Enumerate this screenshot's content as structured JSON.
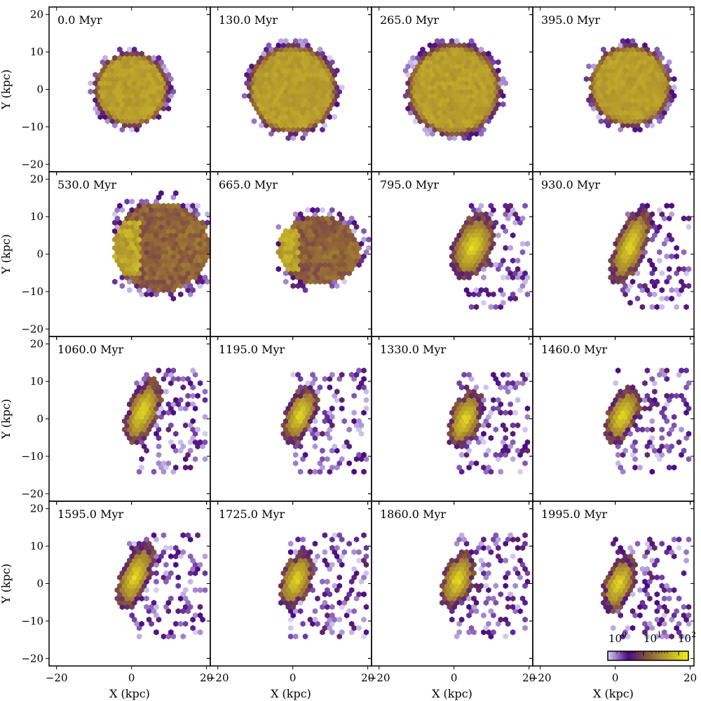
{
  "chart_data": {
    "type": "heatmap",
    "title": "",
    "xlabel": "X (kpc)",
    "ylabel": "Y (kpc)",
    "xlim": [
      -22,
      21
    ],
    "ylim": [
      -22,
      22
    ],
    "xticks": [
      "−20",
      "0",
      "20"
    ],
    "yticks": [
      "20",
      "10",
      "0",
      "−10",
      "−20"
    ],
    "grid": false,
    "colorbar": {
      "scale": "log",
      "labels": [
        "10^0",
        "10^1",
        "10^2"
      ],
      "colors": [
        "#d8d0f6",
        "#4b0a86",
        "#8a5a3a",
        "#bea72a",
        "#f4f01a"
      ],
      "placement": "lower-right of last panel"
    },
    "panels": [
      {
        "time": "0.0 Myr",
        "shape": "disk",
        "cx": 0,
        "cy": 0,
        "rx": 10,
        "ry": 10
      },
      {
        "time": "130.0 Myr",
        "shape": "disk",
        "cx": 0,
        "cy": 0,
        "rx": 12,
        "ry": 12
      },
      {
        "time": "265.0 Myr",
        "shape": "disk",
        "cx": 0,
        "cy": 0,
        "rx": 12.5,
        "ry": 12.5
      },
      {
        "time": "395.0 Myr",
        "shape": "disk",
        "cx": 4,
        "cy": 1,
        "rx": 11,
        "ry": 11
      },
      {
        "time": "530.0 Myr",
        "shape": "fan",
        "cx": 8,
        "cy": 2,
        "rx": 13,
        "ry": 12
      },
      {
        "time": "665.0 Myr",
        "shape": "fan",
        "cx": 7,
        "cy": 1,
        "rx": 11,
        "ry": 9
      },
      {
        "time": "795.0 Myr",
        "shape": "bar",
        "cx": 5,
        "cy": 2,
        "rx": 7,
        "ry": 4
      },
      {
        "time": "930.0 Myr",
        "shape": "bar",
        "cx": 4,
        "cy": 2,
        "rx": 8,
        "ry": 3
      },
      {
        "time": "1060.0 Myr",
        "shape": "bar",
        "cx": 3,
        "cy": 2,
        "rx": 7,
        "ry": 3
      },
      {
        "time": "1195.0 Myr",
        "shape": "bar",
        "cx": 2,
        "cy": 1,
        "rx": 6,
        "ry": 3
      },
      {
        "time": "1330.0 Myr",
        "shape": "bar",
        "cx": 3,
        "cy": 0,
        "rx": 6,
        "ry": 3
      },
      {
        "time": "1460.0 Myr",
        "shape": "bar",
        "cx": 2,
        "cy": 1,
        "rx": 6,
        "ry": 3
      },
      {
        "time": "1595.0 Myr",
        "shape": "bar",
        "cx": 1,
        "cy": 2,
        "rx": 7,
        "ry": 3
      },
      {
        "time": "1725.0 Myr",
        "shape": "bar",
        "cx": 1,
        "cy": 1,
        "rx": 6,
        "ry": 3
      },
      {
        "time": "1860.0 Myr",
        "shape": "bar",
        "cx": 1,
        "cy": 1,
        "rx": 6,
        "ry": 3
      },
      {
        "time": "1995.0 Myr",
        "shape": "bar",
        "cx": 1,
        "cy": 0,
        "rx": 6,
        "ry": 3
      }
    ]
  }
}
